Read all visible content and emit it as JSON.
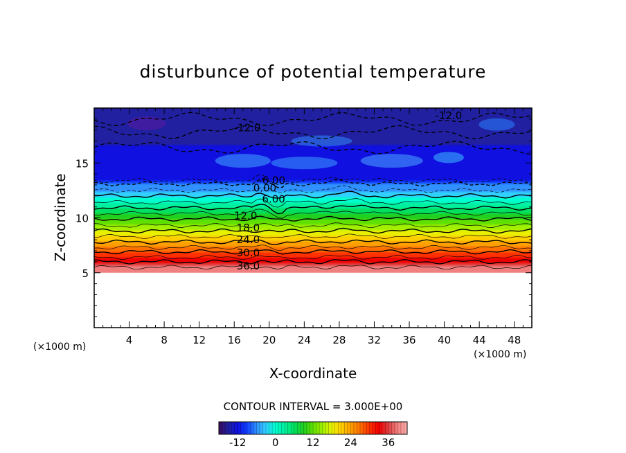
{
  "chart_data": {
    "type": "heatmap",
    "title": "disturbunce of potential temperature",
    "xlabel": "X-coordinate",
    "ylabel": "Z-coordinate",
    "x_unit_left": "(×1000 m)",
    "x_unit_right": "(×1000 m)",
    "xlim": [
      0,
      50
    ],
    "ylim": [
      0,
      20
    ],
    "x_ticks": [
      4,
      8,
      12,
      16,
      20,
      24,
      28,
      32,
      36,
      40,
      44,
      48
    ],
    "y_ticks": [
      5,
      10,
      15
    ],
    "contour_interval_text": "CONTOUR INTERVAL = 3.000E+00",
    "colorbar_ticks": [
      -12,
      0,
      12,
      24,
      36
    ],
    "colorbar_range": [
      -18,
      42
    ],
    "data_bottom_z": 5,
    "contour_levels_z": [
      {
        "value": 39,
        "z": 5.5
      },
      {
        "value": 36,
        "z": 6.0
      },
      {
        "value": 33,
        "z": 6.4
      },
      {
        "value": 30,
        "z": 6.9
      },
      {
        "value": 27,
        "z": 7.3
      },
      {
        "value": 24,
        "z": 7.8
      },
      {
        "value": 21,
        "z": 8.3
      },
      {
        "value": 18,
        "z": 8.8
      },
      {
        "value": 15,
        "z": 9.3
      },
      {
        "value": 12,
        "z": 9.9
      },
      {
        "value": 9,
        "z": 10.4
      },
      {
        "value": 6,
        "z": 10.9
      },
      {
        "value": 3,
        "z": 11.4
      },
      {
        "value": 0,
        "z": 12.0
      },
      {
        "value": -3,
        "z": 12.5
      },
      {
        "value": -6,
        "z": 13.1
      },
      {
        "value": -9,
        "z": 13.4
      }
    ],
    "contour_labels": [
      {
        "text": "-12.0",
        "x": 40.5,
        "z": 19.3
      },
      {
        "text": "-12.0",
        "x": 17.5,
        "z": 18.2
      },
      {
        "text": "-6.00",
        "x": 20.3,
        "z": 13.4
      },
      {
        "text": "0.00",
        "x": 19.5,
        "z": 12.7
      },
      {
        "text": "6.00",
        "x": 20.5,
        "z": 11.7
      },
      {
        "text": "12.0",
        "x": 17.3,
        "z": 10.2
      },
      {
        "text": "18.0",
        "x": 17.6,
        "z": 9.1
      },
      {
        "text": "24.0",
        "x": 17.6,
        "z": 8.0
      },
      {
        "text": "30.0",
        "x": 17.6,
        "z": 6.8
      },
      {
        "text": "36.0",
        "x": 17.6,
        "z": 5.6
      }
    ]
  }
}
